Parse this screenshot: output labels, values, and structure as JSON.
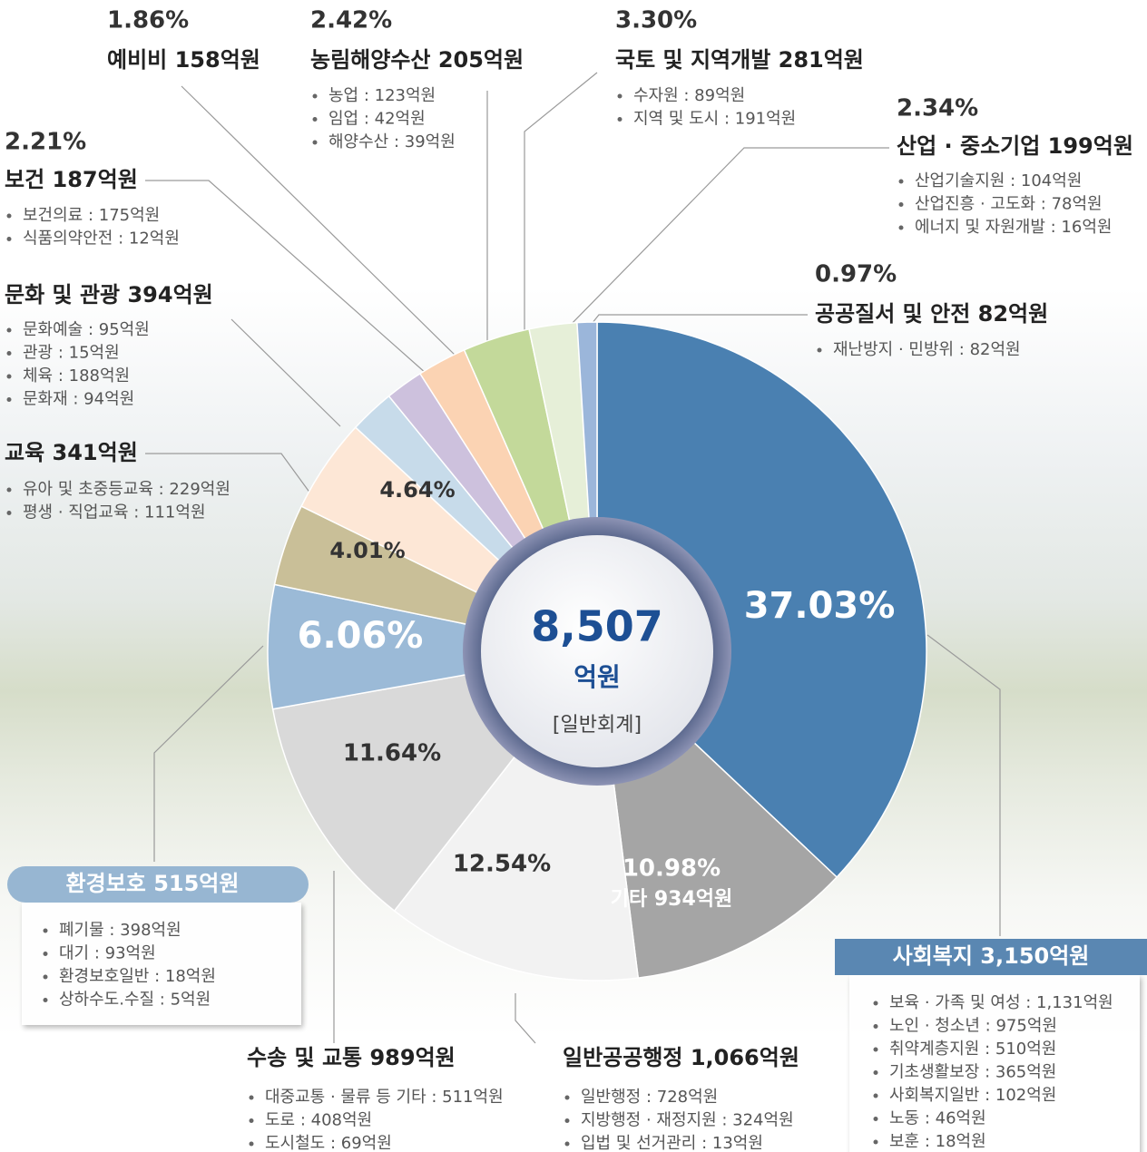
{
  "chart_data": {
    "type": "pie",
    "center_value": "8,507",
    "center_unit": "억원",
    "center_note": "[일반회계]",
    "categories": [
      "사회복지 3,150억원",
      "기타 934억원",
      "일반공공행정 1,066억원",
      "수송 및 교통 989억원",
      "환경보호 515억원",
      "교육 341억원",
      "문화 및 관광 394억원",
      "보건 187억원",
      "예비비 158억원",
      "농림해양수산 205억원",
      "국토 및 지역개발 281억원",
      "산업 · 중소기업 199억원",
      "공공질서 및 안전 82억원"
    ],
    "values": [
      37.03,
      10.98,
      12.54,
      11.64,
      6.06,
      4.01,
      4.64,
      2.21,
      1.86,
      2.42,
      3.3,
      2.34,
      0.97
    ],
    "value_labels": [
      "37.03%",
      "10.98%",
      "12.54%",
      "11.64%",
      "6.06%",
      "4.01%",
      "4.64%",
      "2.21%",
      "1.86%",
      "2.42%",
      "3.30%",
      "2.34%",
      "0.97%"
    ],
    "colors": [
      "#4a80b1",
      "#a5a5a5",
      "#f2f2f2",
      "#d9d9d9",
      "#9bbad7",
      "#c9bf98",
      "#fde7d6",
      "#c7dbea",
      "#cdc1dd",
      "#fbd3b3",
      "#c3d99a",
      "#e6efd8",
      "#9bb6da"
    ],
    "details": [
      [
        "보육 · 가족 및 여성 : 1,131억원",
        "노인 · 청소년 : 975억원",
        "취약계층지원 : 510억원",
        "기초생활보장 : 365억원",
        "사회복지일반 : 102억원",
        "노동 : 46억원",
        "보훈 : 18억원"
      ],
      [],
      [
        "일반행정 : 728억원",
        "지방행정 · 재정지원 : 324억원",
        "입법 및 선거관리 : 13억원"
      ],
      [
        "대중교통 · 물류 등 기타 : 511억원",
        "도로 : 408억원",
        "도시철도 : 69억원"
      ],
      [
        "폐기물 : 398억원",
        "대기 : 93억원",
        "환경보호일반 : 18억원",
        "상하수도.수질 : 5억원"
      ],
      [
        "유아 및 초중등교육 : 229억원",
        "평생 · 직업교육 : 111억원"
      ],
      [
        "문화예술 : 95억원",
        "관광 : 15억원",
        "체육 : 188억원",
        "문화재 : 94억원"
      ],
      [
        "보건의료 : 175억원",
        "식품의약안전 : 12억원"
      ],
      [],
      [
        "농업 : 123억원",
        "임업 : 42억원",
        "해양수산 : 39억원"
      ],
      [
        "수자원 : 89억원",
        "지역 및 도시 : 191억원"
      ],
      [
        "산업기술지원 : 104억원",
        "산업진흥 · 고도화 : 78억원",
        "에너지 및 자원개발 : 16억원"
      ],
      [
        "재난방지 · 민방위 : 82억원"
      ]
    ]
  }
}
